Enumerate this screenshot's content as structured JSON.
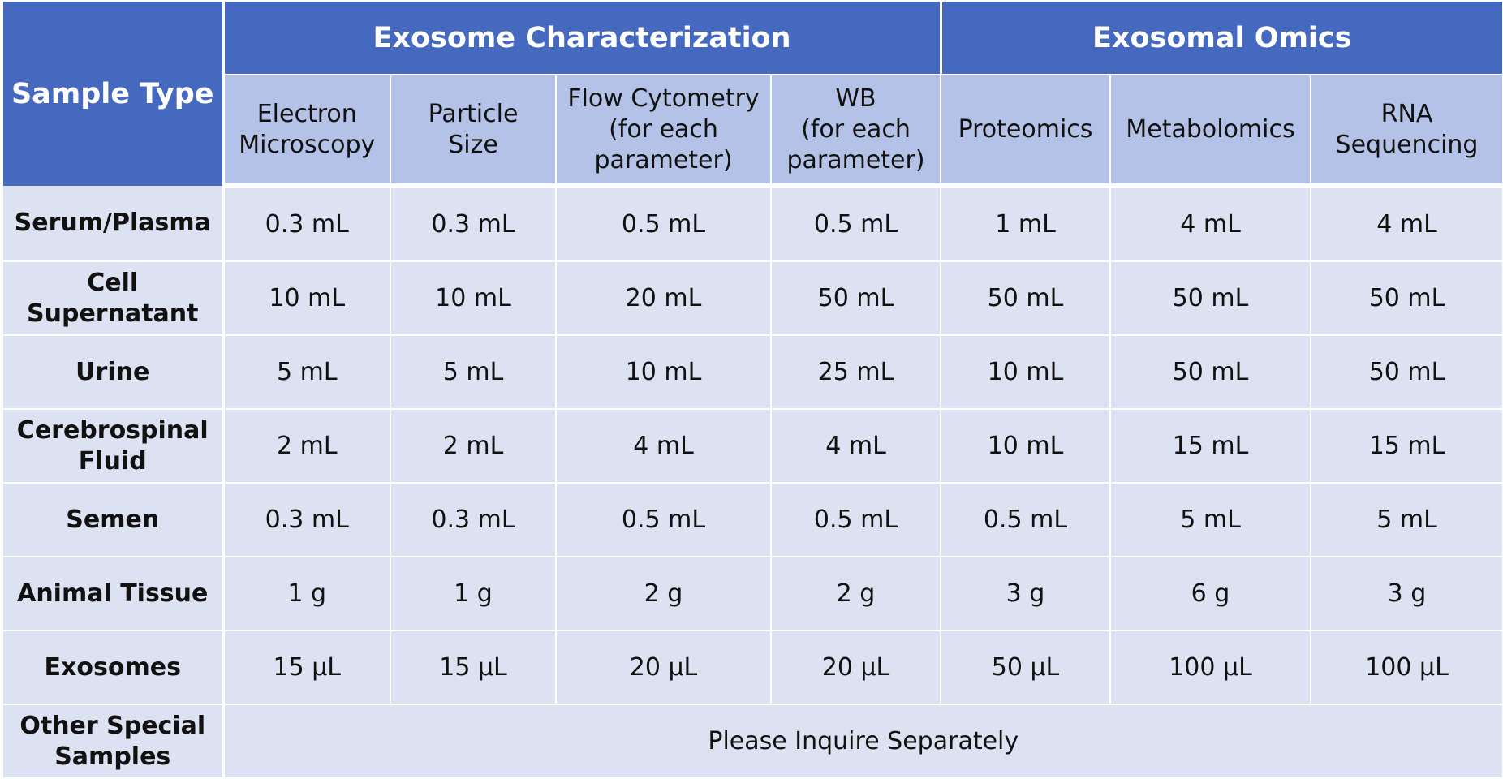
{
  "header": {
    "sample_type": "Sample Type",
    "groups": [
      "Exosome Characterization",
      "Exosomal Omics"
    ],
    "columns": [
      [
        "Electron",
        "Microscopy"
      ],
      [
        "Particle",
        "Size"
      ],
      [
        "Flow Cytometry",
        "(for each",
        "parameter)"
      ],
      [
        "WB",
        "(for each",
        "parameter)"
      ],
      [
        "Proteomics"
      ],
      [
        "Metabolomics"
      ],
      [
        "RNA",
        "Sequencing"
      ]
    ]
  },
  "rows": [
    {
      "label": [
        "Serum/Plasma"
      ],
      "values": [
        "0.3 mL",
        "0.3 mL",
        "0.5 mL",
        "0.5 mL",
        "1 mL",
        "4 mL",
        "4 mL"
      ]
    },
    {
      "label": [
        "Cell",
        "Supernatant"
      ],
      "values": [
        "10 mL",
        "10 mL",
        "20 mL",
        "50 mL",
        "50 mL",
        "50 mL",
        "50 mL"
      ]
    },
    {
      "label": [
        "Urine"
      ],
      "values": [
        "5 mL",
        "5 mL",
        "10 mL",
        "25 mL",
        "10 mL",
        "50 mL",
        "50 mL"
      ]
    },
    {
      "label": [
        "Cerebrospinal",
        "Fluid"
      ],
      "values": [
        "2 mL",
        "2 mL",
        "4 mL",
        "4 mL",
        "10 mL",
        "15 mL",
        "15 mL"
      ]
    },
    {
      "label": [
        "Semen"
      ],
      "values": [
        "0.3 mL",
        "0.3 mL",
        "0.5 mL",
        "0.5 mL",
        "0.5 mL",
        "5 mL",
        "5 mL"
      ]
    },
    {
      "label": [
        "Animal Tissue"
      ],
      "values": [
        "1 g",
        "1 g",
        "2 g",
        "2 g",
        "3 g",
        "6 g",
        "3 g"
      ]
    },
    {
      "label": [
        "Exosomes"
      ],
      "values": [
        "15 μL",
        "15 μL",
        "20 μL",
        "20 μL",
        "50 μL",
        "100 μL",
        "100 μL"
      ]
    }
  ],
  "special": {
    "label": [
      "Other Special",
      "Samples"
    ],
    "text": "Please Inquire Separately"
  },
  "colors": {
    "header_dark": "#4469be",
    "header_light": "#b3c2e6",
    "cell": "#dde2f2",
    "grid": "#ffffff"
  }
}
